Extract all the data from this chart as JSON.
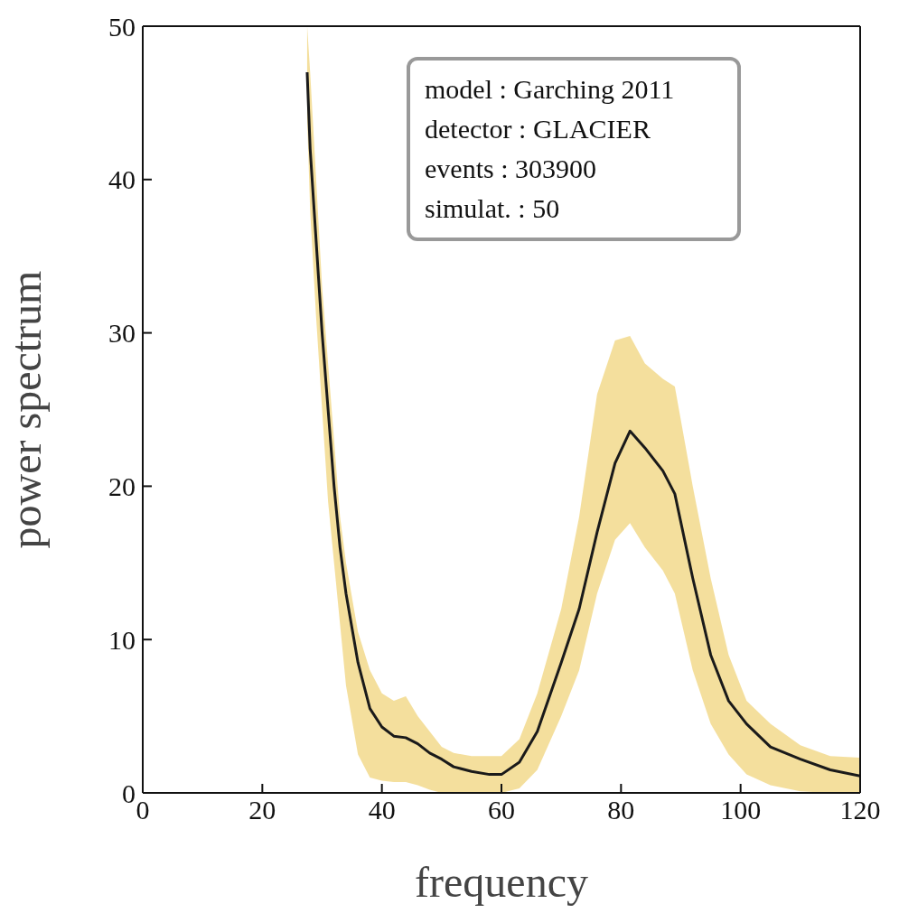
{
  "chart_data": {
    "type": "line",
    "xlabel": "frequency",
    "ylabel": "power spectrum",
    "x": [
      27.5,
      28,
      29,
      30,
      31,
      32,
      33,
      34,
      36,
      38,
      40,
      42,
      44,
      46,
      48,
      50,
      52,
      55,
      58,
      60,
      63,
      66,
      70,
      73,
      76,
      79,
      81.5,
      84,
      87,
      89,
      92,
      95,
      98,
      101,
      105,
      110,
      115,
      120
    ],
    "series": [
      {
        "color": "#1a1a1a",
        "values": [
          47,
          42,
          36,
          30,
          25,
          20,
          16,
          13,
          8.5,
          5.5,
          4.3,
          3.7,
          3.6,
          3.2,
          2.6,
          2.2,
          1.7,
          1.4,
          1.2,
          1.2,
          2,
          4,
          8.5,
          12,
          17,
          21.5,
          23.6,
          22.5,
          21,
          19.5,
          14,
          9,
          6,
          4.5,
          3,
          2.2,
          1.5,
          1.1
        ],
        "lower": [
          44,
          38,
          31,
          25,
          19,
          15,
          11,
          7,
          2.5,
          1,
          0.8,
          0.7,
          0.7,
          0.5,
          0.2,
          0,
          0,
          0,
          0,
          0,
          0.3,
          1.5,
          5,
          8,
          13,
          16.5,
          17.6,
          16,
          14.5,
          13,
          8,
          4.5,
          2.5,
          1.2,
          0.5,
          0.1,
          0,
          0
        ],
        "upper": [
          50,
          47,
          40,
          33,
          28,
          23,
          18,
          15,
          10.5,
          8,
          6.5,
          6,
          6.3,
          5,
          4,
          3,
          2.6,
          2.4,
          2.4,
          2.4,
          3.5,
          6.5,
          12,
          18,
          26,
          29.5,
          29.8,
          28,
          27,
          26.5,
          20,
          14,
          9,
          6,
          4.5,
          3.1,
          2.4,
          2.3
        ]
      }
    ],
    "xlim": [
      0,
      120
    ],
    "xticks": [
      0,
      20,
      40,
      60,
      80,
      100,
      120
    ],
    "ylim": [
      0,
      50
    ],
    "yticks": [
      0,
      10,
      20,
      30,
      40,
      50
    ],
    "grid": false,
    "legend": false,
    "marker": "none",
    "line_style": "solid",
    "annotations": [
      "model : Garching 2011",
      "detector : GLACIER",
      "events : 303900",
      "simulat. : 50"
    ]
  }
}
